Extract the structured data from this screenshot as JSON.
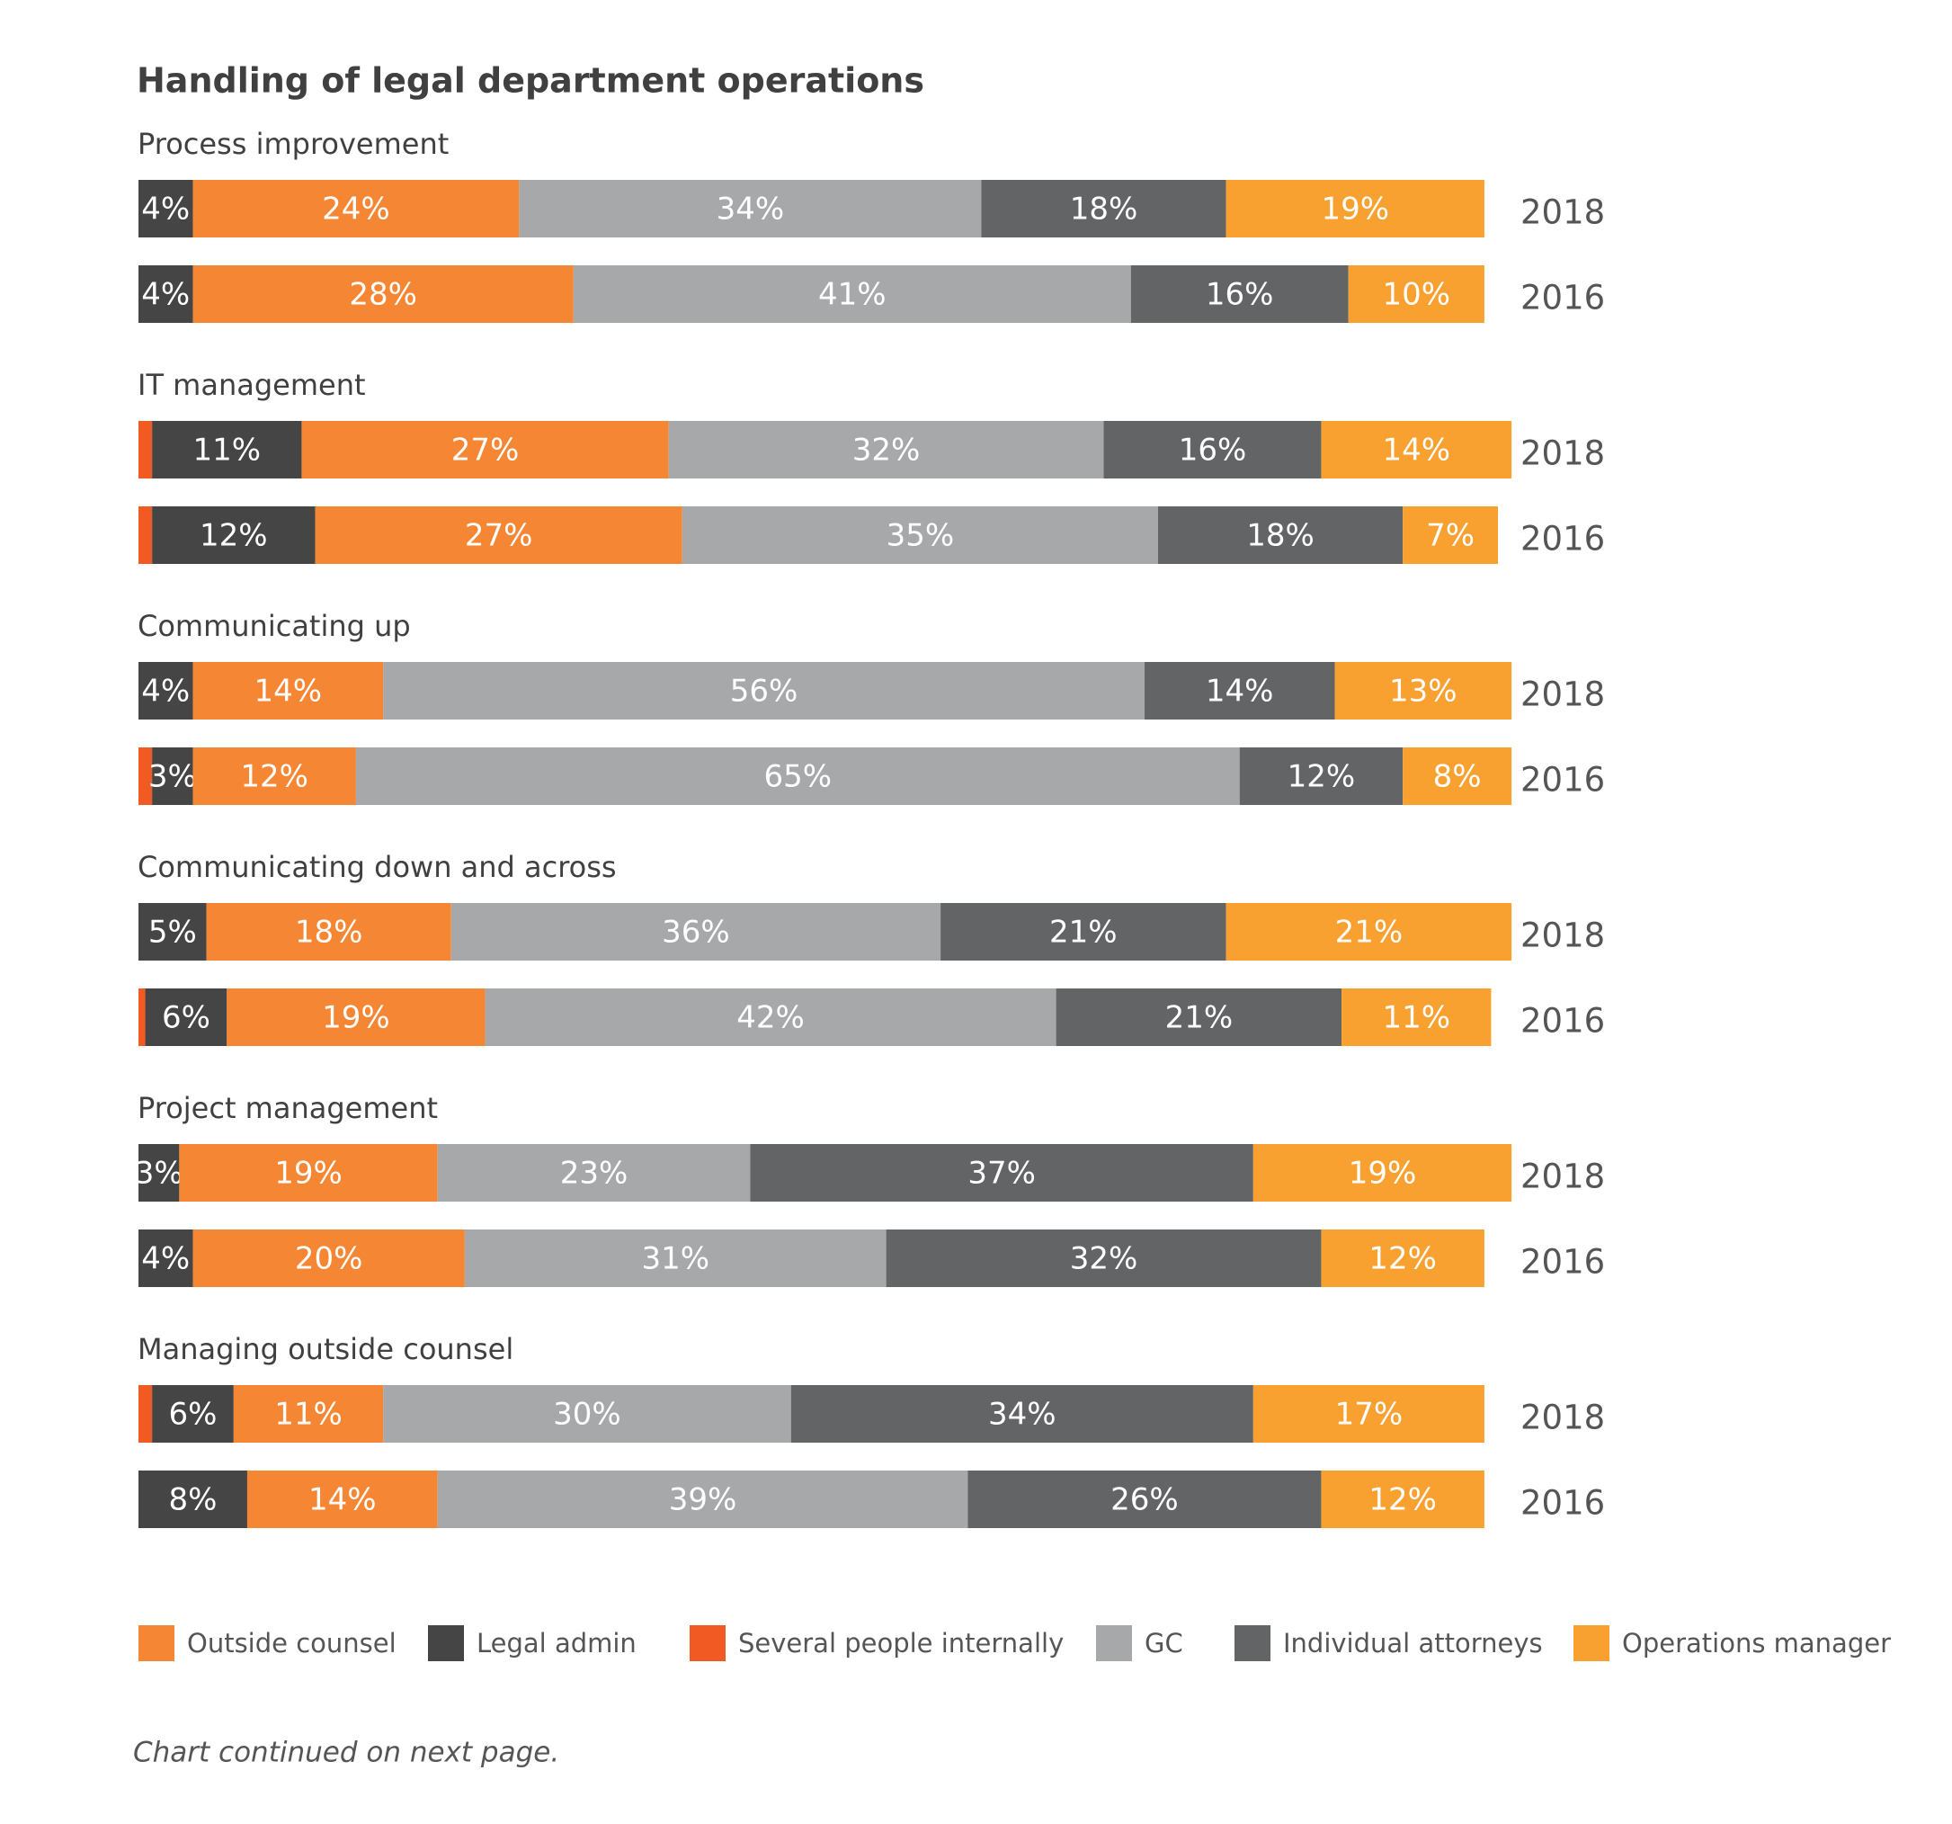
{
  "chart_data": {
    "type": "bar",
    "title": "Handling of legal department operations",
    "groups": [
      "Process improvement",
      "IT management",
      "Communicating up",
      "Communicating down and across",
      "Project management",
      "Managing outside counsel"
    ],
    "categories": [
      "2018",
      "2016",
      "2018",
      "2016",
      "2018",
      "2016",
      "2018",
      "2016",
      "2018",
      "2016",
      "2018",
      "2016"
    ],
    "xlim": [
      0,
      100
    ],
    "series": [
      {
        "name": "Outside counsel",
        "color": "#f58634",
        "values": [
          24,
          28,
          27,
          27,
          14,
          12,
          18,
          19,
          19,
          20,
          11,
          14
        ],
        "value_labels": [
          "24%",
          "28%",
          "27%",
          "27%",
          "14%",
          "12%",
          "18%",
          "19%",
          "19%",
          "20%",
          "11%",
          "14%"
        ]
      },
      {
        "name": "Legal admin",
        "color": "#454546",
        "values": [
          4,
          4,
          11,
          12,
          4,
          3,
          5,
          6,
          3,
          4,
          6,
          8
        ],
        "value_labels": [
          "4%",
          "4%",
          "11%",
          "12%",
          "4%",
          "3%",
          "5%",
          "6%",
          "3%",
          "4%",
          "6%",
          "8%"
        ]
      },
      {
        "name": "Several people internally",
        "color": "#f15a22",
        "values": [
          0,
          0,
          1,
          1,
          0,
          1,
          0,
          0.5,
          0,
          0,
          1,
          0
        ]
      },
      {
        "name": "GC",
        "color": "#a7a8aa",
        "values": [
          34,
          41,
          32,
          35,
          56,
          65,
          36,
          42,
          23,
          31,
          30,
          39
        ],
        "value_labels": [
          "34%",
          "41%",
          "32%",
          "35%",
          "56%",
          "65%",
          "36%",
          "42%",
          "23%",
          "31%",
          "30%",
          "39%"
        ]
      },
      {
        "name": "Individual attorneys",
        "color": "#636466",
        "values": [
          18,
          16,
          16,
          18,
          14,
          12,
          21,
          21,
          37,
          32,
          34,
          26
        ],
        "value_labels": [
          "18%",
          "16%",
          "16%",
          "18%",
          "14%",
          "12%",
          "21%",
          "21%",
          "37%",
          "32%",
          "34%",
          "26%"
        ]
      },
      {
        "name": "Operations manager",
        "color": "#f8a130",
        "values": [
          19,
          10,
          14,
          7,
          13,
          8,
          21,
          11,
          19,
          12,
          17,
          12
        ],
        "value_labels": [
          "19%",
          "10%",
          "14%",
          "7%",
          "13%",
          "8%",
          "21%",
          "11%",
          "19%",
          "12%",
          "17%",
          "12%"
        ]
      }
    ],
    "note": "Chart continued on next page."
  }
}
